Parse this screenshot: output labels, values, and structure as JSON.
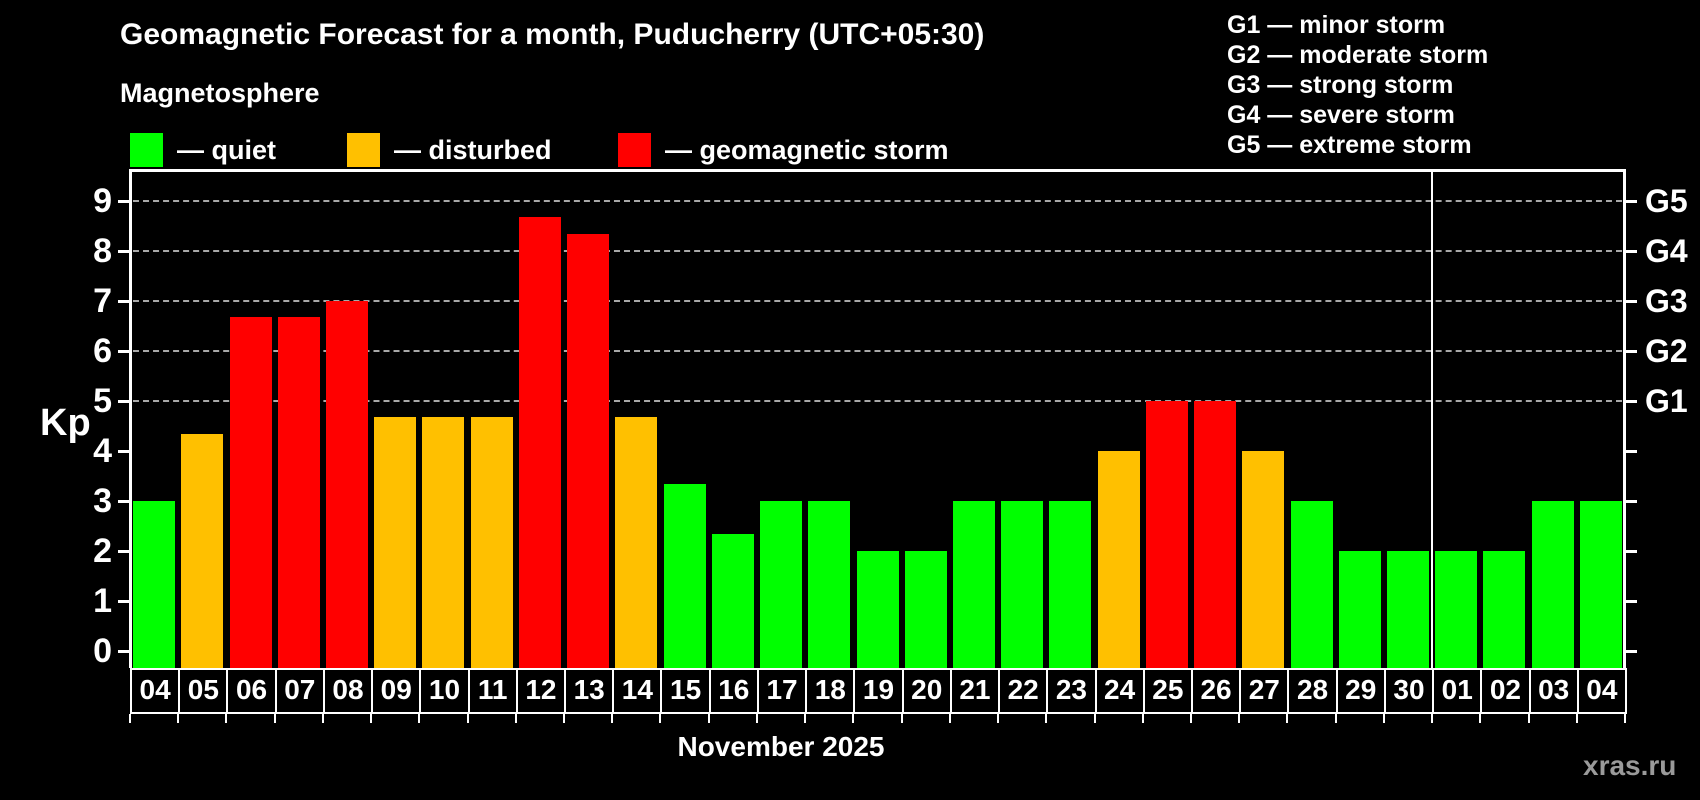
{
  "header": {
    "title": "Geomagnetic Forecast for a month, Puducherry (UTC+05:30)",
    "subtitle": "Magnetosphere",
    "legend": [
      {
        "label": "— quiet",
        "status": "quiet",
        "color": "#00ff00"
      },
      {
        "label": "— disturbed",
        "status": "disturbed",
        "color": "#ffc000"
      },
      {
        "label": "— geomagnetic storm",
        "status": "storm",
        "color": "#ff0000"
      }
    ],
    "g_legend": [
      "G1 — minor storm",
      "G2 — moderate storm",
      "G3 — strong storm",
      "G4 — severe storm",
      "G5 — extreme storm"
    ]
  },
  "footer": {
    "month_label": "November 2025",
    "watermark": "xras.ru"
  },
  "chart_data": {
    "type": "bar",
    "title": "Geomagnetic Forecast for a month, Puducherry (UTC+05:30)",
    "xlabel": "November 2025",
    "ylabel": "Kp",
    "ylim": [
      0,
      9.6
    ],
    "y_ticks": [
      0,
      1,
      2,
      3,
      4,
      5,
      6,
      7,
      8,
      9
    ],
    "gridlines_at": [
      5,
      6,
      7,
      8,
      9
    ],
    "grid": "dashed horizontal lines at G-storm levels",
    "legend_position": "top",
    "categories": [
      "04",
      "05",
      "06",
      "07",
      "08",
      "09",
      "10",
      "11",
      "12",
      "13",
      "14",
      "15",
      "16",
      "17",
      "18",
      "19",
      "20",
      "21",
      "22",
      "23",
      "24",
      "25",
      "26",
      "27",
      "28",
      "29",
      "30",
      "01",
      "02",
      "03",
      "04"
    ],
    "values": [
      3,
      4.33,
      6.67,
      6.67,
      7,
      4.67,
      4.67,
      4.67,
      8.67,
      8.33,
      4.67,
      3.33,
      2.33,
      3,
      3,
      2,
      2,
      3,
      3,
      3,
      4,
      5,
      5,
      4,
      3,
      2,
      2,
      2,
      2,
      3,
      3
    ],
    "statuses": [
      "quiet",
      "disturbed",
      "storm",
      "storm",
      "storm",
      "disturbed",
      "disturbed",
      "disturbed",
      "storm",
      "storm",
      "disturbed",
      "quiet",
      "quiet",
      "quiet",
      "quiet",
      "quiet",
      "quiet",
      "quiet",
      "quiet",
      "quiet",
      "disturbed",
      "storm",
      "storm",
      "disturbed",
      "quiet",
      "quiet",
      "quiet",
      "quiet",
      "quiet",
      "quiet",
      "quiet"
    ],
    "status_colors": {
      "quiet": "#00ff00",
      "disturbed": "#ffc000",
      "storm": "#ff0000"
    },
    "right_axis": [
      {
        "kp": 5,
        "label": "G1"
      },
      {
        "kp": 6,
        "label": "G2"
      },
      {
        "kp": 7,
        "label": "G3"
      },
      {
        "kp": 8,
        "label": "G4"
      },
      {
        "kp": 9,
        "label": "G5"
      }
    ],
    "month_divider_after_index": 26
  }
}
